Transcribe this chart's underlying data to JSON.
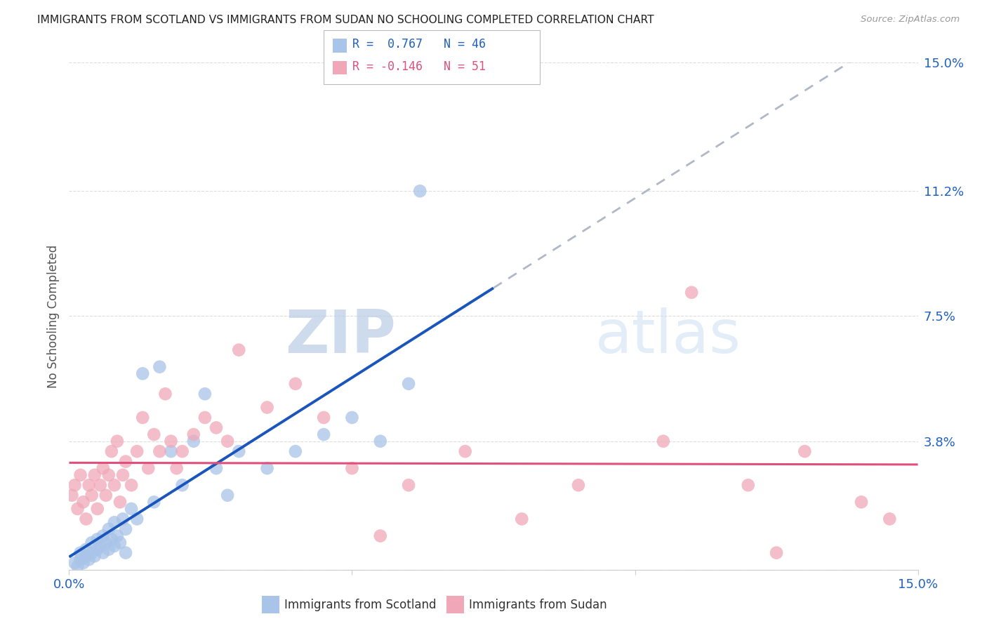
{
  "title": "IMMIGRANTS FROM SCOTLAND VS IMMIGRANTS FROM SUDAN NO SCHOOLING COMPLETED CORRELATION CHART",
  "source": "Source: ZipAtlas.com",
  "ylabel": "No Schooling Completed",
  "ytick_positions": [
    0.0,
    3.8,
    7.5,
    11.2,
    15.0
  ],
  "ytick_labels": [
    "",
    "3.8%",
    "7.5%",
    "11.2%",
    "15.0%"
  ],
  "xlim": [
    0.0,
    15.0
  ],
  "ylim": [
    0.0,
    15.0
  ],
  "scotland_color": "#a8c4e8",
  "sudan_color": "#f0a8b8",
  "scotland_line_color": "#1a55bb",
  "sudan_line_color": "#e0507a",
  "dashed_color": "#b0b8c8",
  "scotland_R": 0.767,
  "scotland_N": 46,
  "sudan_R": -0.146,
  "sudan_N": 51,
  "legend_label_scotland": "Immigrants from Scotland",
  "legend_label_sudan": "Immigrants from Sudan",
  "watermark_zip": "ZIP",
  "watermark_atlas": "atlas",
  "scotland_x": [
    0.1,
    0.15,
    0.2,
    0.2,
    0.25,
    0.3,
    0.3,
    0.35,
    0.4,
    0.4,
    0.45,
    0.5,
    0.5,
    0.55,
    0.6,
    0.6,
    0.65,
    0.7,
    0.7,
    0.75,
    0.8,
    0.8,
    0.85,
    0.9,
    0.95,
    1.0,
    1.0,
    1.1,
    1.2,
    1.3,
    1.5,
    1.6,
    1.8,
    2.0,
    2.2,
    2.4,
    2.6,
    2.8,
    3.0,
    3.5,
    4.0,
    4.5,
    5.0,
    5.5,
    6.0,
    6.2
  ],
  "scotland_y": [
    0.2,
    0.1,
    0.3,
    0.5,
    0.2,
    0.4,
    0.6,
    0.3,
    0.5,
    0.8,
    0.4,
    0.6,
    0.9,
    0.7,
    0.5,
    1.0,
    0.8,
    0.6,
    1.2,
    0.9,
    0.7,
    1.4,
    1.0,
    0.8,
    1.5,
    0.5,
    1.2,
    1.8,
    1.5,
    5.8,
    2.0,
    6.0,
    3.5,
    2.5,
    3.8,
    5.2,
    3.0,
    2.2,
    3.5,
    3.0,
    3.5,
    4.0,
    4.5,
    3.8,
    5.5,
    11.2
  ],
  "sudan_x": [
    0.05,
    0.1,
    0.15,
    0.2,
    0.25,
    0.3,
    0.35,
    0.4,
    0.45,
    0.5,
    0.55,
    0.6,
    0.65,
    0.7,
    0.75,
    0.8,
    0.85,
    0.9,
    0.95,
    1.0,
    1.1,
    1.2,
    1.3,
    1.4,
    1.5,
    1.6,
    1.7,
    1.8,
    1.9,
    2.0,
    2.2,
    2.4,
    2.6,
    2.8,
    3.0,
    3.5,
    4.0,
    4.5,
    5.0,
    5.5,
    6.0,
    7.0,
    8.0,
    9.0,
    10.5,
    11.0,
    12.0,
    12.5,
    13.0,
    14.0,
    14.5
  ],
  "sudan_y": [
    2.2,
    2.5,
    1.8,
    2.8,
    2.0,
    1.5,
    2.5,
    2.2,
    2.8,
    1.8,
    2.5,
    3.0,
    2.2,
    2.8,
    3.5,
    2.5,
    3.8,
    2.0,
    2.8,
    3.2,
    2.5,
    3.5,
    4.5,
    3.0,
    4.0,
    3.5,
    5.2,
    3.8,
    3.0,
    3.5,
    4.0,
    4.5,
    4.2,
    3.8,
    6.5,
    4.8,
    5.5,
    4.5,
    3.0,
    1.0,
    2.5,
    3.5,
    1.5,
    2.5,
    3.8,
    8.2,
    2.5,
    0.5,
    3.5,
    2.0,
    1.5
  ],
  "grid_color": "#dddddd",
  "background_color": "#ffffff",
  "solid_end_x": 7.5,
  "dash_start_x": 7.5,
  "dash_end_x": 15.0
}
